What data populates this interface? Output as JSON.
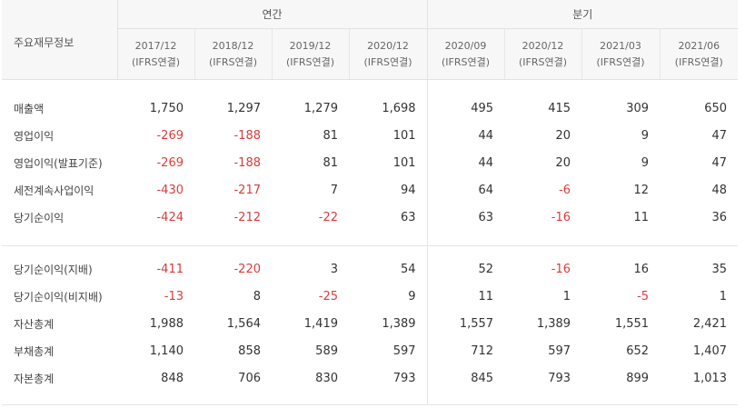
{
  "header": {
    "label_header": "주요재무정보",
    "group_annual": "연간",
    "group_quarter": "분기",
    "periods": [
      {
        "date": "2017/12",
        "basis": "(IFRS연결)"
      },
      {
        "date": "2018/12",
        "basis": "(IFRS연결)"
      },
      {
        "date": "2019/12",
        "basis": "(IFRS연결)"
      },
      {
        "date": "2020/12",
        "basis": "(IFRS연결)"
      },
      {
        "date": "2020/09",
        "basis": "(IFRS연결)"
      },
      {
        "date": "2020/12",
        "basis": "(IFRS연결)"
      },
      {
        "date": "2021/03",
        "basis": "(IFRS연결)"
      },
      {
        "date": "2021/06",
        "basis": "(IFRS연결)"
      }
    ]
  },
  "section1": [
    {
      "label": "매출액",
      "values": [
        "1,750",
        "1,297",
        "1,279",
        "1,698",
        "495",
        "415",
        "309",
        "650"
      ]
    },
    {
      "label": "영업이익",
      "values": [
        "-269",
        "-188",
        "81",
        "101",
        "44",
        "20",
        "9",
        "47"
      ]
    },
    {
      "label": "영업이익(발표기준)",
      "values": [
        "-269",
        "-188",
        "81",
        "101",
        "44",
        "20",
        "9",
        "47"
      ]
    },
    {
      "label": "세전계속사업이익",
      "values": [
        "-430",
        "-217",
        "7",
        "94",
        "64",
        "-6",
        "12",
        "48"
      ]
    },
    {
      "label": "당기순이익",
      "values": [
        "-424",
        "-212",
        "-22",
        "63",
        "63",
        "-16",
        "11",
        "36"
      ]
    }
  ],
  "section2": [
    {
      "label": "당기순이익(지배)",
      "values": [
        "-411",
        "-220",
        "3",
        "54",
        "52",
        "-16",
        "16",
        "35"
      ]
    },
    {
      "label": "당기순이익(비지배)",
      "values": [
        "-13",
        "8",
        "-25",
        "9",
        "11",
        "1",
        "-5",
        "1"
      ]
    },
    {
      "label": "자산총계",
      "values": [
        "1,988",
        "1,564",
        "1,419",
        "1,389",
        "1,557",
        "1,389",
        "1,551",
        "2,421"
      ]
    },
    {
      "label": "부채총계",
      "values": [
        "1,140",
        "858",
        "589",
        "597",
        "712",
        "597",
        "652",
        "1,407"
      ]
    },
    {
      "label": "자본총계",
      "values": [
        "848",
        "706",
        "830",
        "793",
        "845",
        "793",
        "899",
        "1,013"
      ]
    }
  ],
  "colors": {
    "negative": "#d93c3c",
    "text": "#333333",
    "header_bg": "#f7f7f7",
    "border": "#e2e2e2"
  }
}
